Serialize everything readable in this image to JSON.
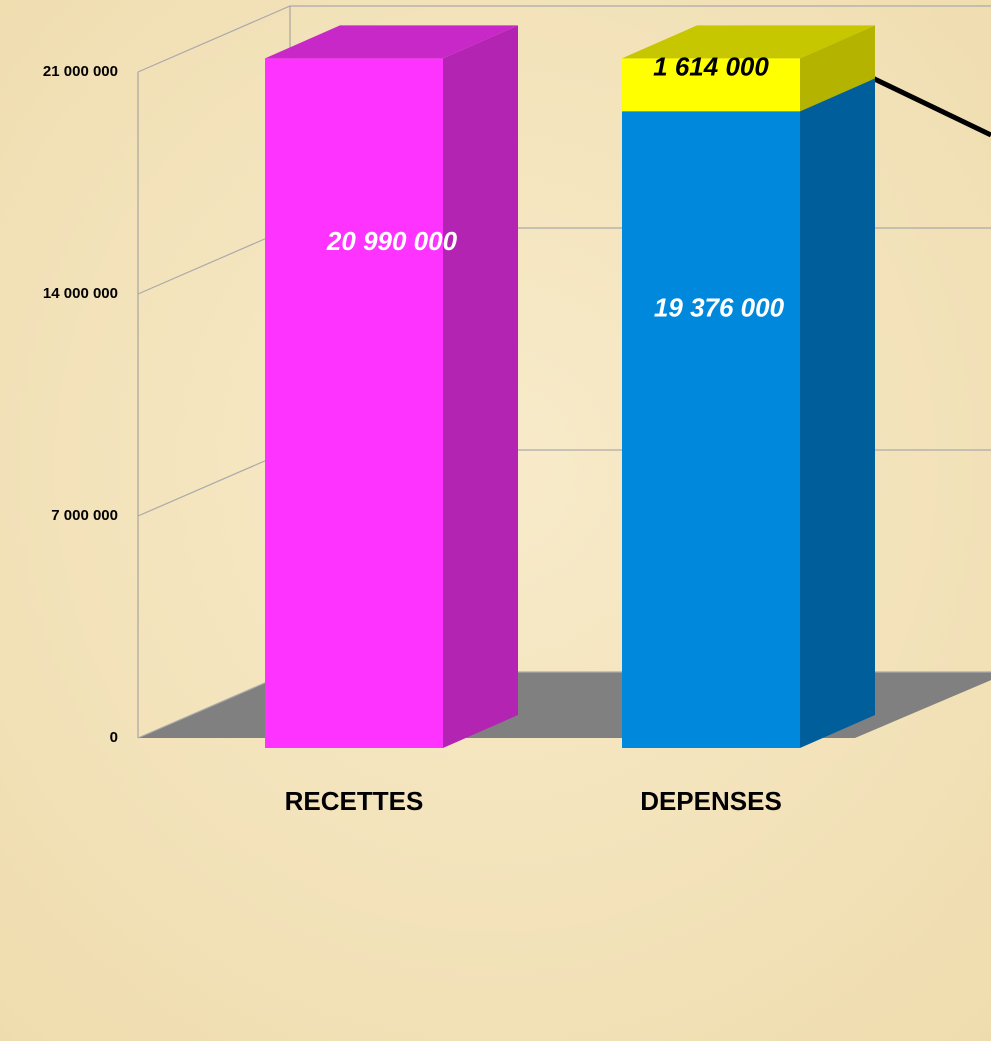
{
  "chart_data": {
    "type": "bar3d_stacked",
    "categories": [
      "RECETTES",
      "DEPENSES"
    ],
    "series": [
      {
        "colors": [
          "#ff33ff",
          "#0088dd"
        ],
        "values": [
          20990000,
          19376000
        ],
        "value_labels": [
          "20 990 000",
          "19 376 000"
        ],
        "label_color": "#ffffff"
      },
      {
        "color": "#ffff00",
        "values": [
          null,
          1614000
        ],
        "value_labels": [
          null,
          "1 614 000"
        ],
        "label_color": "#000000"
      }
    ],
    "ylim": [
      0,
      21000000
    ],
    "yticks": [
      {
        "value": 0,
        "label": "0"
      },
      {
        "value": 7000000,
        "label": "7 000 000"
      },
      {
        "value": 14000000,
        "label": "14 000 000"
      },
      {
        "value": 21000000,
        "label": "21 000 000"
      }
    ],
    "grid": true
  }
}
